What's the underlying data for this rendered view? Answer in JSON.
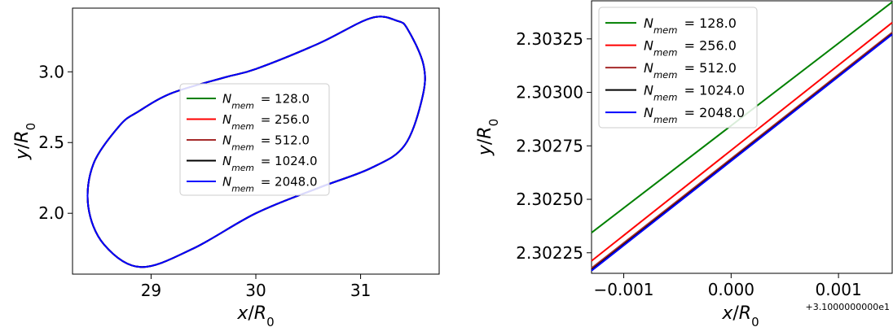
{
  "chart_data": [
    {
      "type": "line",
      "panel": "left",
      "xlabel_var": "x",
      "xlabel_sub": "0",
      "ylabel_var": "y",
      "ylabel_sub": "0",
      "xlim": [
        28.25,
        31.75
      ],
      "ylim": [
        1.57,
        3.45
      ],
      "xticks": [
        29,
        30,
        31
      ],
      "xtick_labels": [
        "29",
        "30",
        "31"
      ],
      "yticks": [
        2.0,
        2.5,
        3.0
      ],
      "ytick_labels": [
        "2.0",
        "2.5",
        "3.0"
      ],
      "legend_position": "center",
      "series": [
        {
          "name": "N_mem = 128.0",
          "label_value": "128.0",
          "color": "#008000"
        },
        {
          "name": "N_mem = 256.0",
          "label_value": "256.0",
          "color": "#ff0000"
        },
        {
          "name": "N_mem = 512.0",
          "label_value": "512.0",
          "color": "#a52a2a"
        },
        {
          "name": "N_mem = 1024.0",
          "label_value": "1024.0",
          "color": "#000000"
        },
        {
          "name": "N_mem = 2048.0",
          "label_value": "2048.0",
          "color": "#0000ff"
        }
      ],
      "outline": {
        "x": [
          31.45,
          31.6,
          31.59,
          31.42,
          31.1,
          30.6,
          30.0,
          29.4,
          28.9,
          28.55,
          28.4,
          28.45,
          28.7,
          28.88,
          29.2,
          29.7,
          30.0,
          30.6,
          31.1,
          31.35
        ],
        "y": [
          3.3,
          3.05,
          2.82,
          2.48,
          2.32,
          2.18,
          2.0,
          1.75,
          1.62,
          1.78,
          2.05,
          2.35,
          2.62,
          2.72,
          2.85,
          2.96,
          3.02,
          3.2,
          3.38,
          3.36
        ]
      }
    },
    {
      "type": "line",
      "panel": "right",
      "xlabel_var": "x",
      "xlabel_sub": "0",
      "ylabel_var": "y",
      "ylabel_sub": "0",
      "offset_text": "+3.1000000000e1",
      "xlim": [
        -0.0013,
        0.0015
      ],
      "ylim": [
        2.302154,
        2.303428
      ],
      "xticks": [
        -0.001,
        0.0,
        0.001
      ],
      "xtick_labels": [
        "−0.001",
        "0.000",
        "0.001"
      ],
      "yticks": [
        2.30225,
        2.3025,
        2.30275,
        2.303,
        2.30325
      ],
      "ytick_labels": [
        "2.30225",
        "2.30250",
        "2.30275",
        "2.30300",
        "2.30325"
      ],
      "legend_position": "upper left",
      "series": [
        {
          "name": "N_mem = 128.0",
          "label_value": "128.0",
          "color": "#008000",
          "x": [
            -0.0013,
            0.0015
          ],
          "y": [
            2.302344,
            2.303422
          ]
        },
        {
          "name": "N_mem = 256.0",
          "label_value": "256.0",
          "color": "#ff0000",
          "x": [
            -0.0013,
            0.0015
          ],
          "y": [
            2.302212,
            2.303326
          ]
        },
        {
          "name": "N_mem = 512.0",
          "label_value": "512.0",
          "color": "#a52a2a",
          "x": [
            -0.0013,
            0.0015
          ],
          "y": [
            2.302178,
            2.30328
          ]
        },
        {
          "name": "N_mem = 1024.0",
          "label_value": "1024.0",
          "color": "#000000",
          "x": [
            -0.0013,
            0.0015
          ],
          "y": [
            2.30217,
            2.303273
          ]
        },
        {
          "name": "N_mem = 2048.0",
          "label_value": "2048.0",
          "color": "#0000ff",
          "x": [
            -0.0013,
            0.0015
          ],
          "y": [
            2.302166,
            2.303271
          ]
        }
      ]
    }
  ]
}
